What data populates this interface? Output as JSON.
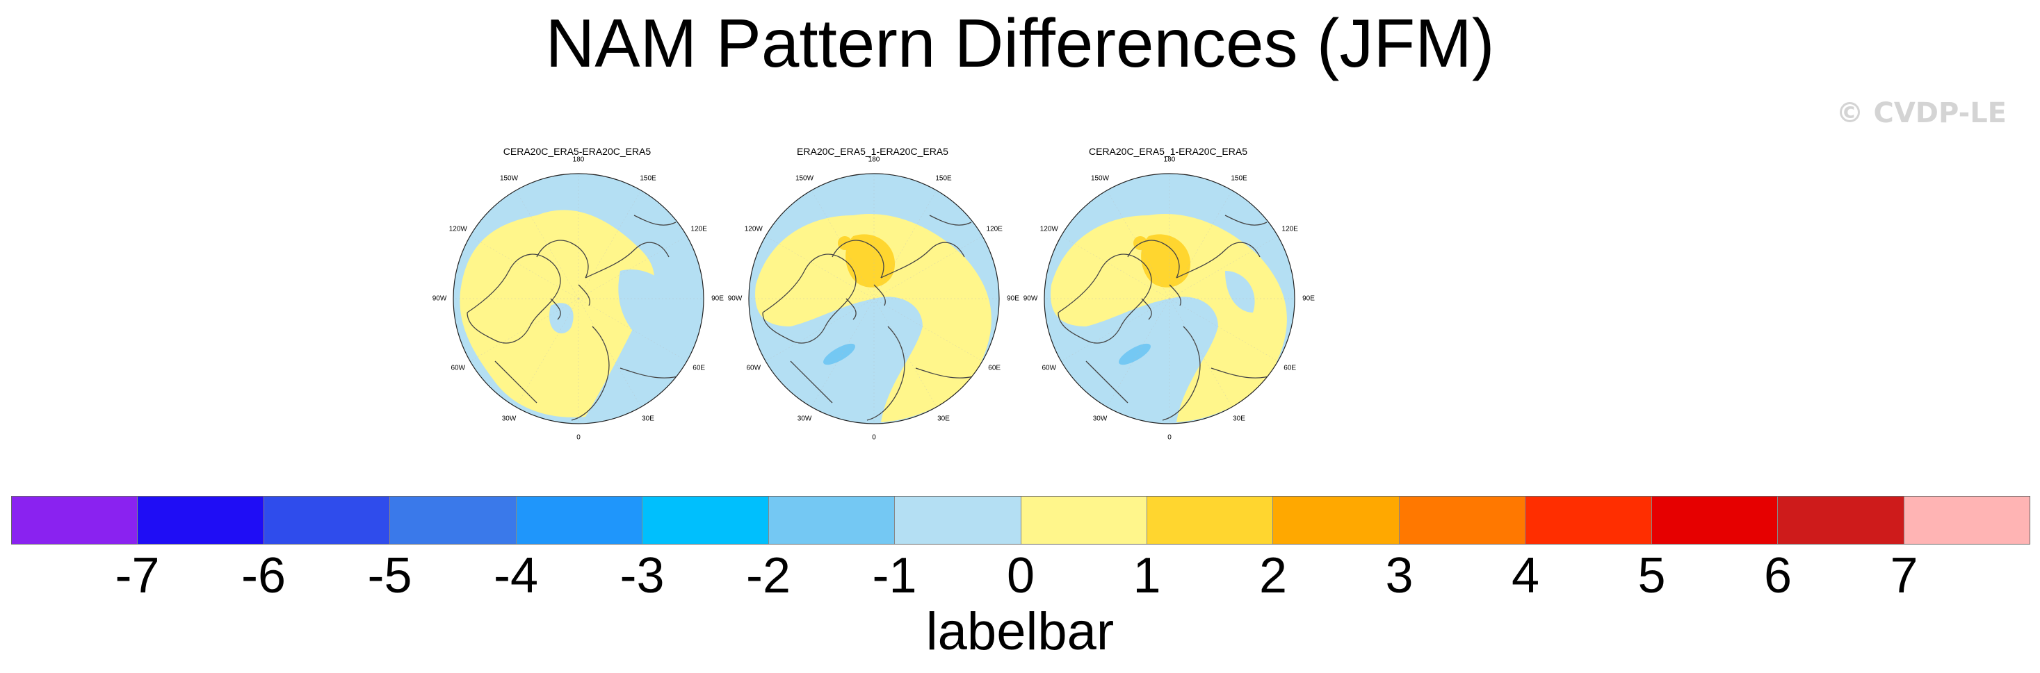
{
  "figure": {
    "title": "NAM Pattern Differences (JFM)",
    "copyright": "© CVDP-LE"
  },
  "panels": [
    {
      "title": "CERA20C_ERA5-ERA20C_ERA5",
      "variant": "a"
    },
    {
      "title": "ERA20C_ERA5_1-ERA20C_ERA5",
      "variant": "b"
    },
    {
      "title": "CERA20C_ERA5_1-ERA20C_ERA5",
      "variant": "c"
    }
  ],
  "longitude_labels": [
    "180",
    "150E",
    "120E",
    "90E",
    "60E",
    "30E",
    "0",
    "30W",
    "60W",
    "90W",
    "120W",
    "150W"
  ],
  "colorbar": {
    "label": "labelbar",
    "ticks": [
      "-7",
      "-6",
      "-5",
      "-4",
      "-3",
      "-2",
      "-1",
      "0",
      "1",
      "2",
      "3",
      "4",
      "5",
      "6",
      "7"
    ],
    "colors": [
      "#8a22f0",
      "#1f0df5",
      "#2f4cec",
      "#3a79ea",
      "#1f96fb",
      "#00bffd",
      "#74c8f3",
      "#b4dff3",
      "#fff68b",
      "#ffd62f",
      "#ffa800",
      "#ff7800",
      "#ff2e00",
      "#e60000",
      "#ce1b1b",
      "#ffb4b4"
    ]
  },
  "colors": {
    "land_pos": "#fff68b",
    "neg": "#b4dff3",
    "pos_strong": "#ffd62f",
    "neg_strong": "#74c8f3",
    "coast": "#444444"
  }
}
